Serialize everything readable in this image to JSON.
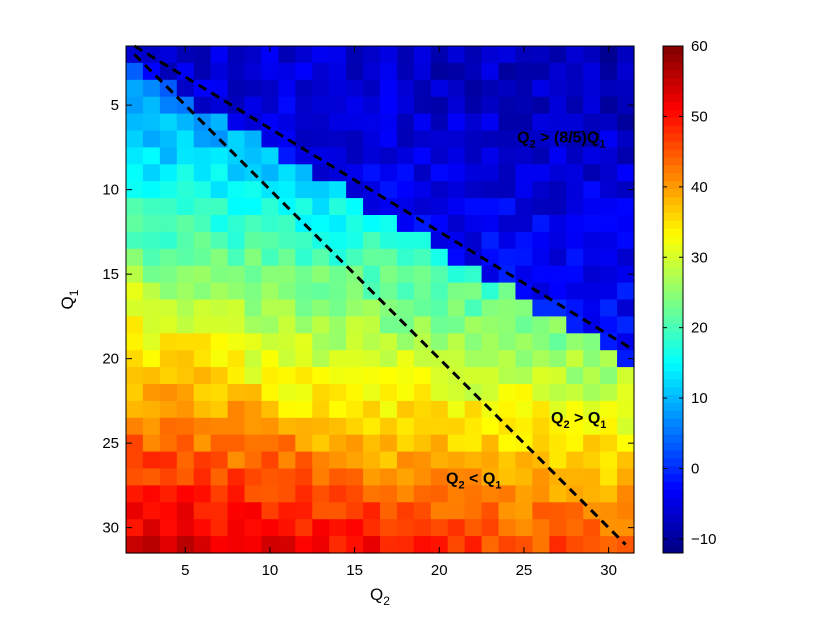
{
  "chart_data": {
    "type": "heatmap",
    "title": "",
    "xlabel": "Q",
    "xlabel_subscript": "2",
    "ylabel": "Q",
    "ylabel_subscript": "1",
    "x_range": [
      1.5,
      31.5
    ],
    "y_range": [
      1.5,
      31.5
    ],
    "y_axis_reversed": true,
    "x_ticks": [
      5,
      10,
      15,
      20,
      25,
      30
    ],
    "y_ticks": [
      5,
      10,
      15,
      20,
      25,
      30
    ],
    "grid": false,
    "colormap": "jet",
    "color_range": [
      -12,
      60
    ],
    "colorbar": {
      "location": "right",
      "ticks": [
        -10,
        0,
        10,
        20,
        30,
        40,
        50,
        60
      ]
    },
    "cells": {
      "rows": "Q1 = 2..31",
      "cols": "Q2 = 2..31",
      "blue_region_below_Q2": 3,
      "blue_region_slope": 0.6,
      "blue_region_value": -6,
      "diagonal_band_value": 18
    },
    "lines": [
      {
        "style": "dashed",
        "x": [
          2,
          31.5
        ],
        "y": [
          1.5,
          19.5
        ]
      },
      {
        "style": "dashed",
        "x": [
          2,
          31
        ],
        "y": [
          2.0,
          31.0
        ]
      }
    ],
    "annotations": [
      {
        "label": "Q",
        "sub": "2",
        "rest": " > (8/5)Q",
        "sub2": "1",
        "x": 24.6,
        "y": 7.2
      },
      {
        "label": "Q",
        "sub": "2",
        "rest": " > Q",
        "sub2": "1",
        "x": 26.6,
        "y": 23.8
      },
      {
        "label": "Q",
        "sub": "2",
        "rest": " < Q",
        "sub2": "1",
        "x": 20.4,
        "y": 27.4
      }
    ]
  }
}
